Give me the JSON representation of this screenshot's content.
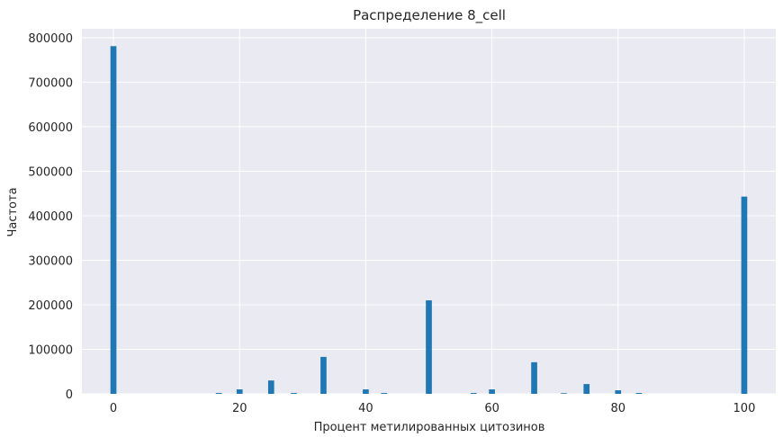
{
  "chart_data": {
    "type": "bar",
    "title": "Распределение 8_cell",
    "xlabel": "Процент метилированных цитозинов",
    "ylabel": "Частота",
    "xlim": [
      -5,
      105
    ],
    "ylim": [
      0,
      820000
    ],
    "xticks": [
      0,
      20,
      40,
      60,
      80,
      100
    ],
    "yticks": [
      0,
      100000,
      200000,
      300000,
      400000,
      500000,
      600000,
      700000,
      800000
    ],
    "grid": true,
    "bar_color": "#1f77b4",
    "bins": [
      {
        "x": 0,
        "value": 781000
      },
      {
        "x": 16.7,
        "value": 2000
      },
      {
        "x": 20,
        "value": 10000
      },
      {
        "x": 25,
        "value": 30000
      },
      {
        "x": 28.6,
        "value": 2000
      },
      {
        "x": 33.3,
        "value": 83000
      },
      {
        "x": 40,
        "value": 10000
      },
      {
        "x": 42.9,
        "value": 2000
      },
      {
        "x": 50,
        "value": 210000
      },
      {
        "x": 57.1,
        "value": 2000
      },
      {
        "x": 60,
        "value": 10000
      },
      {
        "x": 66.7,
        "value": 71000
      },
      {
        "x": 71.4,
        "value": 1500
      },
      {
        "x": 75,
        "value": 22000
      },
      {
        "x": 80,
        "value": 8000
      },
      {
        "x": 83.3,
        "value": 2000
      },
      {
        "x": 100,
        "value": 443000
      }
    ]
  }
}
